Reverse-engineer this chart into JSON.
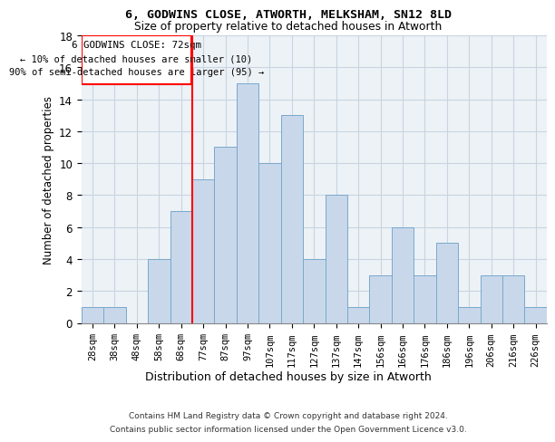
{
  "title1": "6, GODWINS CLOSE, ATWORTH, MELKSHAM, SN12 8LD",
  "title2": "Size of property relative to detached houses in Atworth",
  "xlabel": "Distribution of detached houses by size in Atworth",
  "ylabel": "Number of detached properties",
  "categories": [
    "28sqm",
    "38sqm",
    "48sqm",
    "58sqm",
    "68sqm",
    "77sqm",
    "87sqm",
    "97sqm",
    "107sqm",
    "117sqm",
    "127sqm",
    "137sqm",
    "147sqm",
    "156sqm",
    "166sqm",
    "176sqm",
    "186sqm",
    "196sqm",
    "206sqm",
    "216sqm",
    "226sqm"
  ],
  "values": [
    1,
    1,
    0,
    4,
    7,
    9,
    11,
    15,
    10,
    13,
    4,
    8,
    1,
    3,
    6,
    3,
    5,
    1,
    3,
    3,
    1
  ],
  "bar_color": "#c8d8ea",
  "bar_edge_color": "#7aa8cc",
  "bar_edge_width": 0.7,
  "vline_x": 4.5,
  "vline_color": "red",
  "annotation_line1": "6 GODWINS CLOSE: 72sqm",
  "annotation_line2": "← 10% of detached houses are smaller (10)",
  "annotation_line3": "90% of semi-detached houses are larger (95) →",
  "annotation_box_color": "red",
  "footnote1": "Contains HM Land Registry data © Crown copyright and database right 2024.",
  "footnote2": "Contains public sector information licensed under the Open Government Licence v3.0.",
  "ylim": [
    0,
    18
  ],
  "yticks": [
    0,
    2,
    4,
    6,
    8,
    10,
    12,
    14,
    16,
    18
  ],
  "bg_color": "#edf2f7",
  "grid_color": "#c8d4e0"
}
